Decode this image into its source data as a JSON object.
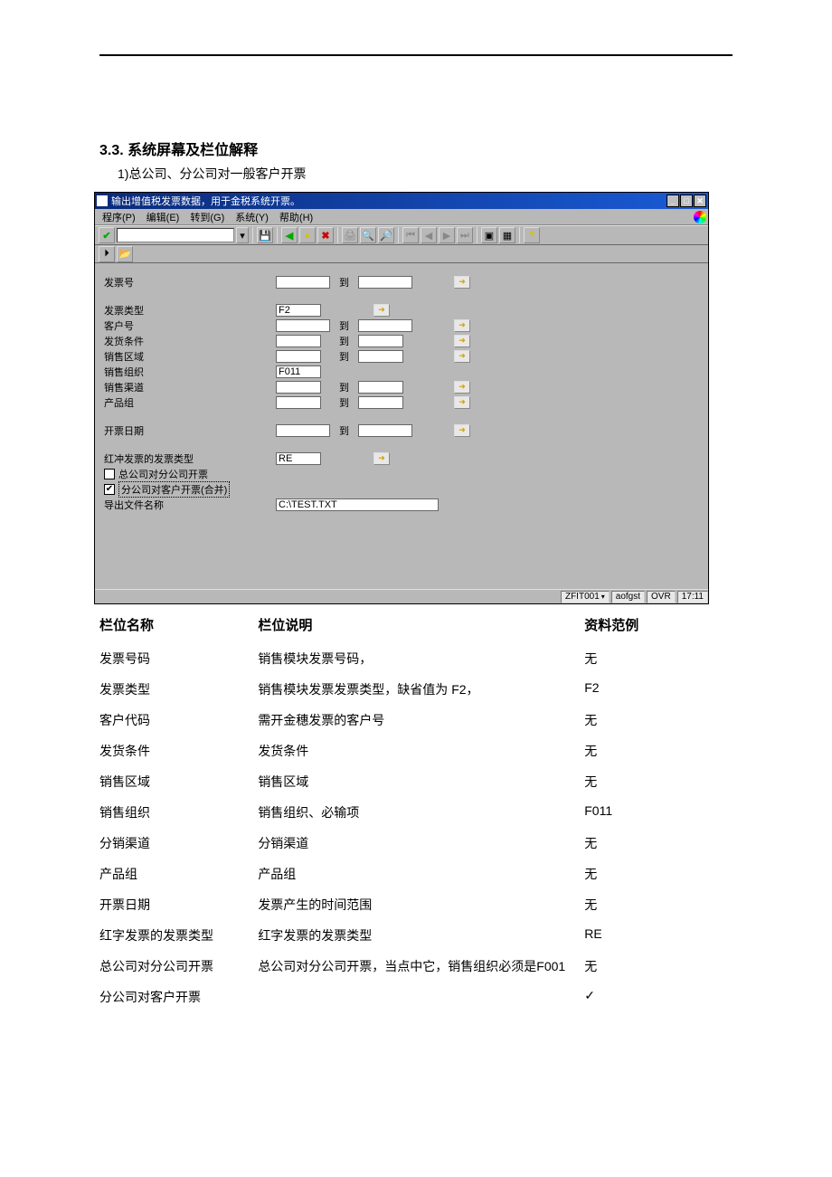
{
  "doc": {
    "section_heading": "3.3. 系统屏幕及栏位解释",
    "subheading": "1)总公司、分公司对一般客户开票"
  },
  "sap": {
    "title": "输出增值税发票数据，用于金税系统开票。",
    "menu": {
      "program": "程序(P)",
      "edit": "编辑(E)",
      "goto": "转到(G)",
      "system": "系统(Y)",
      "help": "帮助(H)"
    },
    "form": {
      "invoice_no_label": "发票号",
      "to_label": "到",
      "invoice_type_label": "发票类型",
      "invoice_type_value": "F2",
      "customer_no_label": "客户号",
      "delivery_cond_label": "发货条件",
      "sales_region_label": "销售区域",
      "sales_org_label": "销售组织",
      "sales_org_value": "F011",
      "sales_channel_label": "销售渠道",
      "product_group_label": "产品组",
      "billing_date_label": "开票日期",
      "red_type_label": "红冲发票的发票类型",
      "red_type_value": "RE",
      "chk_hq_to_branch": "总公司对分公司开票",
      "chk_branch_to_cust": "分公司对客户开票(合并)",
      "export_file_label": "导出文件名称",
      "export_file_value": "C:\\TEST.TXT"
    },
    "status": {
      "tcode": "ZFIT001",
      "user": "aofgst",
      "mode": "OVR",
      "time": "17:11"
    }
  },
  "table": {
    "head_name": "栏位名称",
    "head_desc": "栏位说明",
    "head_example": "资料范例",
    "rows": [
      {
        "name": "发票号码",
        "desc": "销售模块发票号码，",
        "ex": "无"
      },
      {
        "name": "发票类型",
        "desc": "销售模块发票发票类型，缺省值为 F2，",
        "ex": "F2"
      },
      {
        "name": "客户代码",
        "desc": "需开金穗发票的客户号",
        "ex": "无"
      },
      {
        "name": "发货条件",
        "desc": "发货条件",
        "ex": "无"
      },
      {
        "name": "销售区域",
        "desc": "销售区域",
        "ex": "无"
      },
      {
        "name": "销售组织",
        "desc": "销售组织、必输项",
        "ex": "F011"
      },
      {
        "name": "分销渠道",
        "desc": "分销渠道",
        "ex": "无"
      },
      {
        "name": "产品组",
        "desc": "产品组",
        "ex": "无"
      },
      {
        "name": "开票日期",
        "desc": "发票产生的时间范围",
        "ex": "无"
      },
      {
        "name": "红字发票的发票类型",
        "desc": "红字发票的发票类型",
        "ex": "RE"
      },
      {
        "name": "总公司对分公司开票",
        "desc": "总公司对分公司开票，当点中它，销售组织必须是F001",
        "ex": "无"
      },
      {
        "name": "分公司对客户开票",
        "desc": "",
        "ex": "✓"
      }
    ]
  }
}
